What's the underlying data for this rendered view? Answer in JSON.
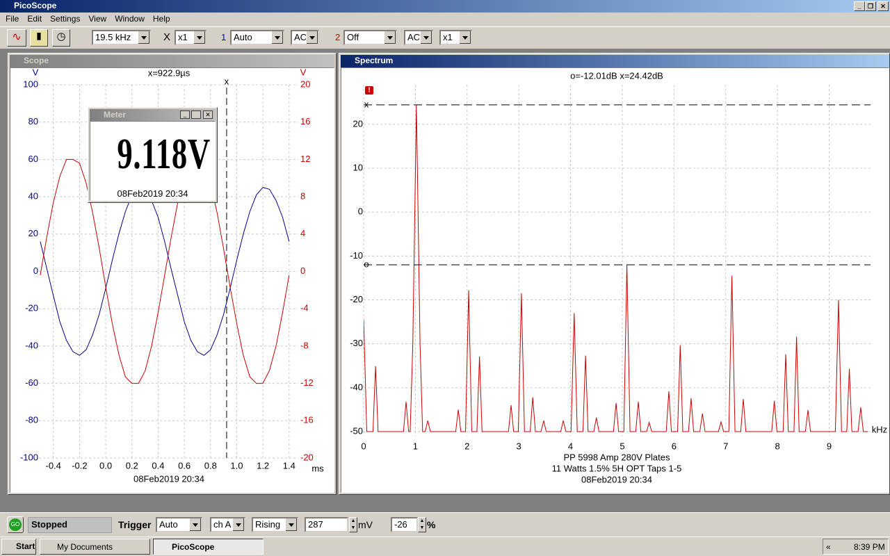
{
  "window": {
    "title": "PicoScope"
  },
  "menu": [
    "File",
    "Edit",
    "Settings",
    "View",
    "Window",
    "Help"
  ],
  "toolbar": {
    "timebase": "19.5 kHz",
    "x_label": "X",
    "x_mult": "x1",
    "ch1": "1",
    "ch1_range": "Auto",
    "ch1_coupling": "AC",
    "ch2": "2",
    "ch2_range": "Off",
    "ch2_coupling": "AC",
    "ch2_mult": "x1"
  },
  "meter": {
    "title": "Meter",
    "reading": "9.118V",
    "date": "08Feb2019  20:34"
  },
  "chart_data": [
    {
      "type": "line",
      "panel_title": "Scope",
      "ylabel": "V",
      "y2label": "V",
      "xlabel": "ms",
      "footer": "08Feb2019  20:34",
      "cursor": {
        "symbol": "x",
        "label": "x=922.9µs",
        "value": 0.9229
      },
      "x": [
        -0.5,
        -0.45,
        -0.4,
        -0.35,
        -0.3,
        -0.25,
        -0.2,
        -0.15,
        -0.1,
        -0.05,
        0,
        0.05,
        0.1,
        0.15,
        0.2,
        0.25,
        0.3,
        0.35,
        0.4,
        0.45,
        0.5,
        0.55,
        0.6,
        0.65,
        0.7,
        0.75,
        0.8,
        0.85,
        0.9,
        0.95,
        1,
        1.05,
        1.1,
        1.15,
        1.2,
        1.25,
        1.3,
        1.35,
        1.4
      ],
      "xlim": [
        -0.51,
        1.47
      ],
      "xticks": [
        -0.4,
        -0.2,
        {
          "value": 0,
          "label": "0.0"
        },
        0.2,
        0.4,
        0.6,
        0.8,
        {
          "value": 1,
          "label": "1.0"
        },
        1.2,
        1.4
      ],
      "ylim": [
        -100,
        100
      ],
      "yticks": [
        -100,
        -80,
        -60,
        -40,
        -20,
        0,
        20,
        40,
        60,
        80,
        100
      ],
      "y2lim": [
        -20,
        20
      ],
      "y2ticks": [
        -20,
        -16,
        -12,
        -8,
        -4,
        0,
        4,
        8,
        12,
        16,
        20
      ],
      "grid": true,
      "series": [
        {
          "color": "#00008b",
          "values": [
            16,
            1.5,
            -13,
            -27,
            -37,
            -43,
            -45,
            -42,
            -34,
            -23,
            -9,
            6,
            20,
            32,
            41,
            45,
            44,
            38,
            29,
            16,
            1,
            -13,
            -27,
            -37,
            -43,
            -45,
            -42,
            -34,
            -23,
            -9,
            6,
            20,
            32,
            41,
            45,
            44,
            38,
            29,
            16
          ]
        },
        {
          "color": "#cc0000",
          "axis": "y2",
          "values": [
            -0.4,
            3.7,
            7.4,
            10.2,
            12,
            12,
            11.6,
            9.5,
            6.3,
            2.5,
            -1.7,
            -5.6,
            -8.9,
            -11.3,
            -12,
            -12,
            -10.7,
            -8,
            -4.4,
            -0.4,
            3.7,
            7.4,
            10.3,
            12,
            12,
            11.6,
            9.4,
            6.3,
            2.4,
            -1.7,
            -5.6,
            -9,
            -11.3,
            -12,
            -12,
            -10.6,
            -8,
            -4.4,
            -0.4
          ]
        }
      ]
    },
    {
      "type": "line",
      "panel_title": "Spectrum",
      "header": "o=-12.01dB  x=24.42dB",
      "xlabel": "kHz",
      "markers": [
        {
          "symbol": "o",
          "value": -12.01
        },
        {
          "symbol": "x",
          "value": 24.42
        }
      ],
      "notes": [
        "PP 5998  Amp 280V Plates",
        "11 Watts 1.5% 5H OPT Taps 1-5",
        "08Feb2019  20:34"
      ],
      "x": [
        0,
        0.06,
        0.18,
        0.23,
        0.28,
        0.77,
        0.82,
        0.87,
        0.9,
        0.95,
        1.02,
        1.09,
        1.14,
        1.19,
        1.24,
        1.29,
        1.78,
        1.83,
        1.88,
        1.97,
        2.03,
        2.09,
        2.19,
        2.24,
        2.29,
        2.8,
        2.85,
        2.9,
        2.99,
        3.05,
        3.11,
        3.22,
        3.27,
        3.32,
        3.43,
        3.48,
        3.53,
        3.81,
        3.86,
        3.91,
        4.01,
        4.07,
        4.13,
        4.24,
        4.29,
        4.34,
        4.45,
        4.5,
        4.55,
        4.83,
        4.88,
        4.93,
        5.03,
        5.09,
        5.15,
        5.26,
        5.31,
        5.36,
        5.47,
        5.52,
        5.57,
        5.85,
        5.9,
        5.95,
        6.07,
        6.12,
        6.17,
        6.28,
        6.33,
        6.38,
        6.5,
        6.55,
        6.6,
        6.86,
        6.91,
        6.96,
        7.06,
        7.12,
        7.18,
        7.29,
        7.34,
        7.39,
        7.89,
        7.94,
        7.99,
        8.11,
        8.16,
        8.21,
        8.32,
        8.37,
        8.42,
        8.54,
        8.59,
        8.64,
        9.12,
        9.18,
        9.24,
        9.34,
        9.39,
        9.44,
        9.56,
        9.61,
        9.66,
        9.75
      ],
      "xlim": [
        0,
        9.8
      ],
      "xticks": [
        0,
        1,
        2,
        3,
        4,
        5,
        6,
        7,
        8,
        9
      ],
      "ylim": [
        -51,
        29
      ],
      "yticks": [
        -50,
        -40,
        -30,
        -20,
        -10,
        0,
        10,
        20
      ],
      "grid": true,
      "series": [
        {
          "color": "#cc0000",
          "values": [
            -24.5,
            -50,
            -50,
            -35.1,
            -50,
            -50,
            -43.2,
            -50,
            -50,
            -30,
            24.42,
            -30,
            -50,
            -50,
            -47.5,
            -50,
            -50,
            -45,
            -50,
            -50,
            -17.8,
            -50,
            -50,
            -32.9,
            -50,
            -50,
            -44,
            -50,
            -50,
            -18.5,
            -50,
            -50,
            -42.2,
            -50,
            -50,
            -47.5,
            -50,
            -50,
            -47.5,
            -50,
            -50,
            -23,
            -50,
            -50,
            -32.7,
            -50,
            -50,
            -46.8,
            -50,
            -50,
            -43.5,
            -50,
            -50,
            -12.01,
            -50,
            -50,
            -43.2,
            -50,
            -50,
            -47.9,
            -50,
            -50,
            -40.8,
            -50,
            -50,
            -30.3,
            -50,
            -50,
            -42.4,
            -50,
            -50,
            -45.9,
            -50,
            -50,
            -47.8,
            -50,
            -50,
            -14.5,
            -50,
            -50,
            -42.6,
            -50,
            -50,
            -43,
            -50,
            -50,
            -32.4,
            -50,
            -50,
            -28.4,
            -50,
            -50,
            -45.1,
            -50,
            -50,
            -20,
            -50,
            -50,
            -35.7,
            -50,
            -50,
            -44.5,
            -50,
            -50
          ]
        }
      ]
    }
  ],
  "status": {
    "go": "GO",
    "state": "Stopped",
    "trigger": "Trigger",
    "mode": "Auto",
    "channel": "ch A",
    "edge": "Rising",
    "level": 287,
    "level_unit": "mV",
    "delay": -26,
    "delay_unit": "%"
  },
  "taskbar": {
    "start": "Start",
    "tasks": [
      "My Documents",
      "PicoScope"
    ],
    "tray_arrow": "«",
    "clock": "8:39 PM"
  }
}
